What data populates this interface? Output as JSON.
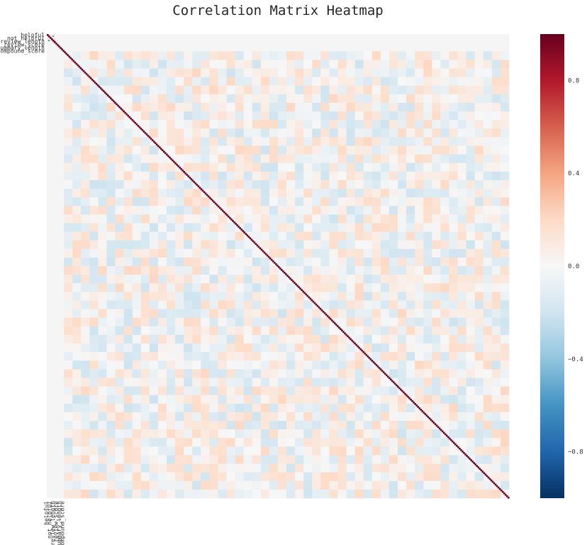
{
  "chart_data": {
    "type": "heatmap",
    "title": "Correlation Matrix Heatmap",
    "xlabel": "",
    "ylabel": "",
    "value_range": [
      -1.0,
      1.0
    ],
    "colormap": "RdBu_r",
    "colors": {
      "low": "#053061",
      "mid": "#f7f7f7",
      "high": "#67001f",
      "missing": "#f5f5f5"
    },
    "legend": "right",
    "grid": false,
    "visible_row_labels": [
      "helpful",
      "not_helpful",
      "review_length",
      "review_score",
      "summary_length",
      "compound_score"
    ],
    "visible_col_labels": [
      "helpful",
      "not_helpful",
      "review_length",
      "review_score",
      "summary_length",
      "compound_score"
    ],
    "approx_variable_count": 322,
    "diagonal_value": 1.0,
    "missing_block_note": "",
    "colorbar": {
      "ticks": [
        0.8,
        0.4,
        0.0,
        -0.4,
        -0.8
      ],
      "tick_labels": [
        "0.8",
        "0.4",
        "0.0",
        "−0.4",
        "−0.8"
      ]
    }
  }
}
